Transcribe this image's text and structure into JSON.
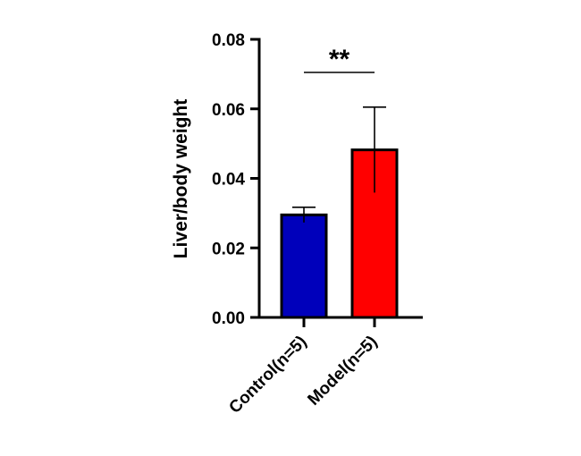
{
  "chart_data": {
    "type": "bar",
    "title": "",
    "xlabel": "",
    "ylabel": "Liver/body weight",
    "ylim": [
      0,
      0.08
    ],
    "yticks": [
      "0.00",
      "0.02",
      "0.04",
      "0.06",
      "0.08"
    ],
    "categories": [
      "Control(n=5)",
      "Model(n=5)"
    ],
    "values": [
      0.0295,
      0.0482
    ],
    "errors": [
      0.0022,
      0.0123
    ],
    "bar_colors": [
      "#0000bb",
      "#ff0000"
    ],
    "significance": {
      "label": "**",
      "between": [
        0,
        1
      ]
    },
    "grid": false,
    "legend": "none"
  }
}
